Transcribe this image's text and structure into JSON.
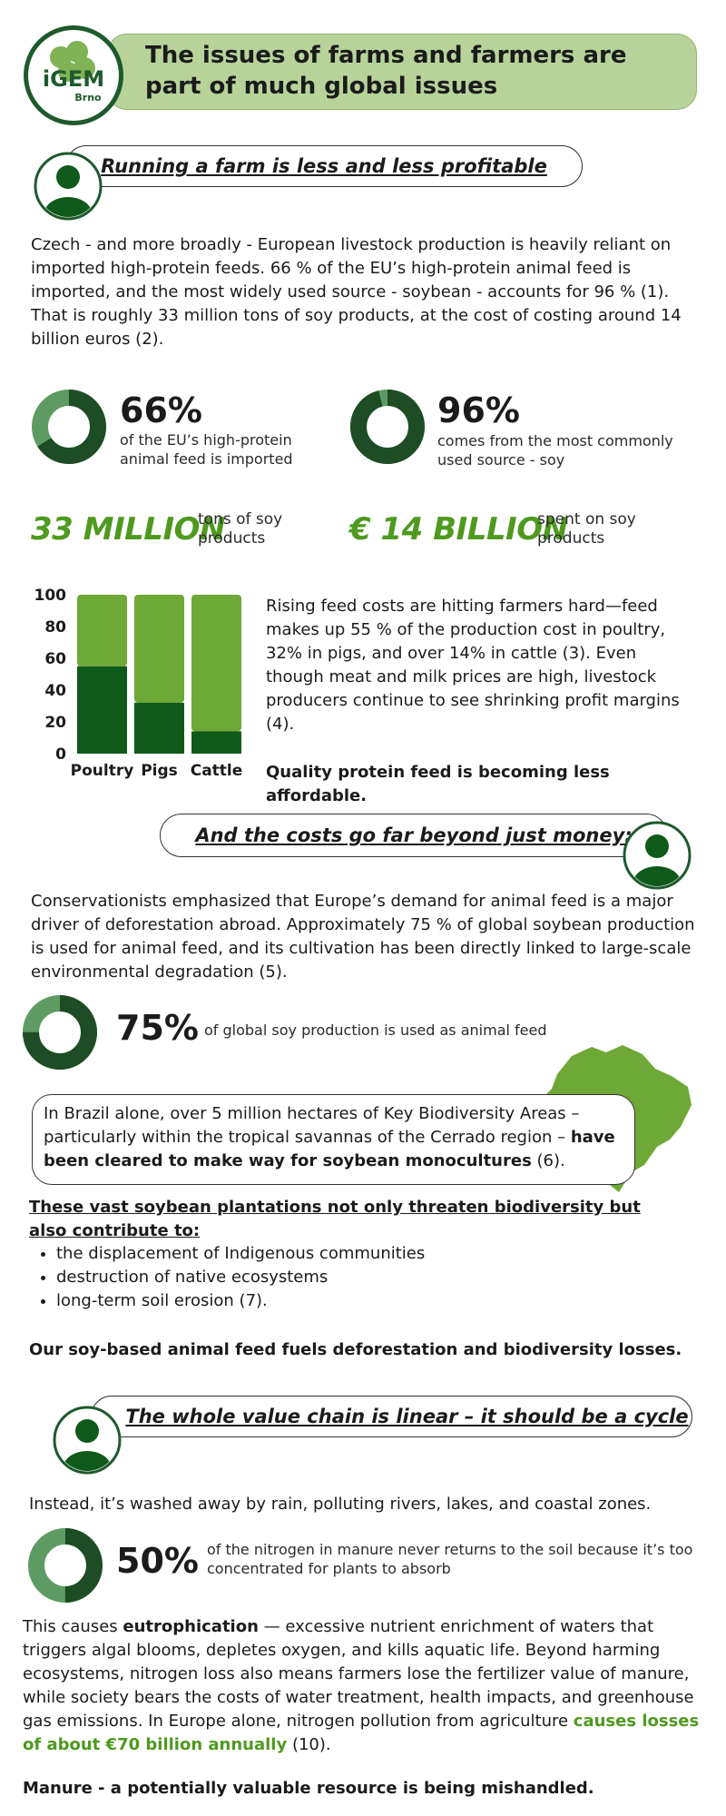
{
  "header": {
    "title": "The issues of farms and farmers are part of much global issues",
    "logo_text": "iGEM",
    "logo_subtext": "Brno"
  },
  "section1": {
    "title": "Running a farm is less and less profitable",
    "intro": "Czech - and more broadly - European livestock production is heavily reliant on imported high-protein feeds. 66 % of the EU’s high-protein animal feed is imported, and the most widely used source - soybean - accounts for 96 % (1). That is roughly 33 million tons of soy products, at the cost of costing around 14 billion euros (2).",
    "stats": [
      {
        "value": "66%",
        "label": "of the EU’s high-protein animal feed is imported",
        "fraction": 0.66
      },
      {
        "value": "96%",
        "label": "comes from the most commonly used source - soy",
        "fraction": 0.96
      }
    ],
    "big_stats": [
      {
        "value": "33 MILLION",
        "label": "tons of soy products"
      },
      {
        "value": "€ 14 BILLION",
        "label": "spent on soy products"
      }
    ],
    "chart_text": "Rising feed costs are hitting farmers hard—feed makes up 55 % of the production cost in poultry, 32% in pigs, and over 14% in cattle (3). Even though meat and milk prices are high, livestock producers continue to see shrinking profit margins (4).",
    "conclusion": "Quality protein feed is becoming less affordable."
  },
  "chart_data": {
    "type": "bar",
    "stacked": true,
    "categories": [
      "Poultry",
      "Pigs",
      "Cattle"
    ],
    "series": [
      {
        "values": [
          55,
          32,
          14
        ],
        "color": "#0f5a1a"
      },
      {
        "values": [
          45,
          68,
          86
        ],
        "color": "#6ea836"
      }
    ],
    "yticks": [
      "0",
      "20",
      "40",
      "60",
      "80",
      "100"
    ],
    "ylim": [
      0,
      100
    ]
  },
  "section2": {
    "title": "And the costs go far beyond just money:",
    "intro": "Conservationists emphasized that Europe’s demand for animal feed is a major driver of deforestation abroad. Approximately 75 % of global soybean production is used for animal feed, and its cultivation has been directly linked to large-scale environmental degradation (5).",
    "stat": {
      "value": "75%",
      "label": "of global soy production is used as animal feed",
      "fraction": 0.75
    },
    "callout_text": "In Brazil alone, over 5 million hectares of Key Biodiversity Areas – particularly within the tropical savannas of the Cerrado region – ",
    "callout_bold": "have been cleared to make way for soybean monocultures",
    "callout_tail": " (6).",
    "list_heading": "These vast soybean plantations not only threaten biodiversity but also contribute to:",
    "list": [
      "the displacement of Indigenous communities",
      "destruction of native ecosystems",
      "long-term soil erosion (7)."
    ],
    "conclusion": "Our soy-based animal feed fuels deforestation and biodiversity losses."
  },
  "section3": {
    "title": "The whole value chain is linear – it should be a cycle",
    "intro": "Instead, it’s washed away by rain, polluting rivers, lakes, and coastal zones.",
    "stat": {
      "value": "50%",
      "label": "of the nitrogen in manure never returns to the soil because it’s too concentrated for plants to absorb",
      "fraction": 0.5
    },
    "p_a": "This causes ",
    "p_b": "eutrophication",
    "p_c": " — excessive nutrient enrichment of waters that triggers algal blooms, depletes oxygen, and kills aquatic life. Beyond harming ecosystems, nitrogen loss also means farmers lose the fertilizer value of manure, while society bears the costs of water treatment, health impacts, and greenhouse gas emissions. In Europe alone, nitrogen pollution from agriculture ",
    "p_highlight": "causes losses of about €70 billion annually",
    "p_d": " (10).",
    "conclusion": "Manure - a potentially valuable resource is being mishandled."
  },
  "colors": {
    "dark_green": "#1e4d25",
    "mid_green": "#4f8a55",
    "accent_green": "#4e9a1f",
    "header_bg": "#b7d39a"
  }
}
